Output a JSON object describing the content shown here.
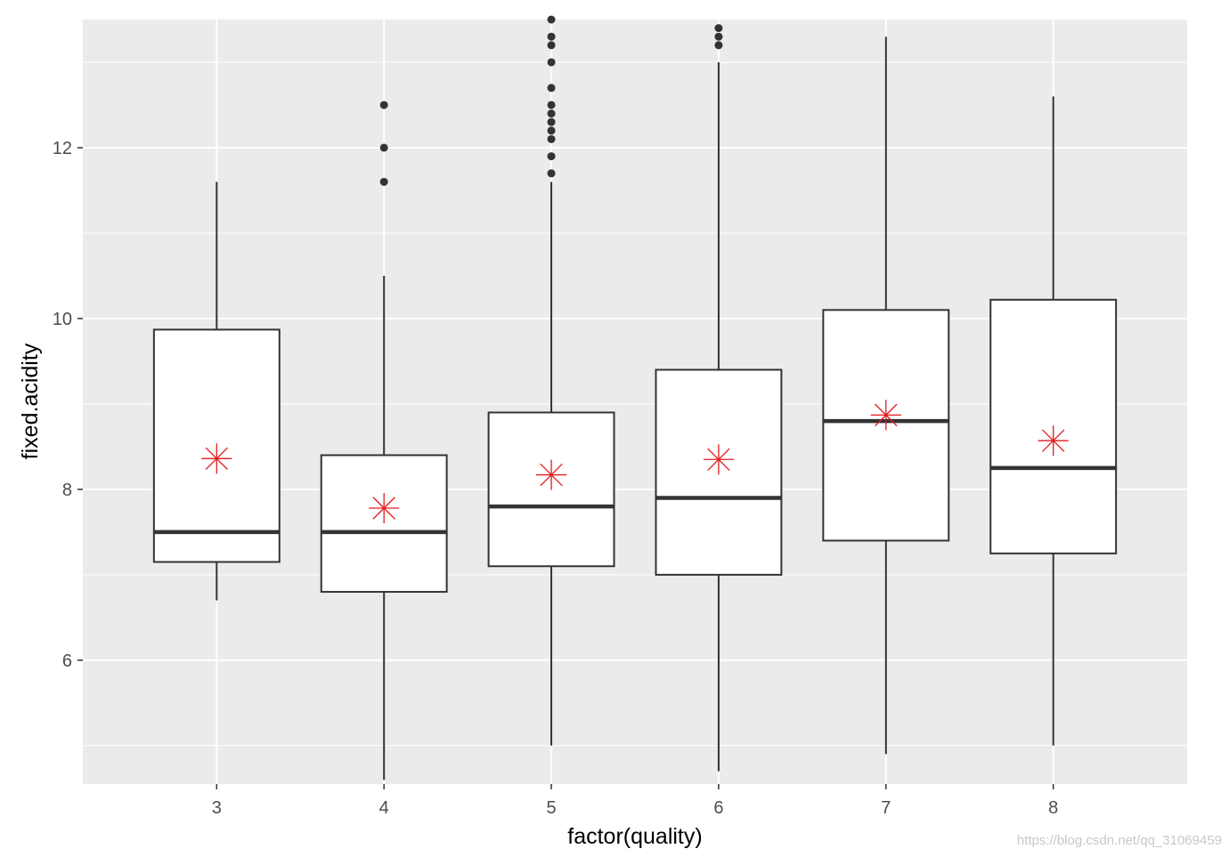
{
  "chart_data": {
    "type": "boxplot",
    "xlabel": "factor(quality)",
    "ylabel": "fixed.acidity",
    "categories": [
      "3",
      "4",
      "5",
      "6",
      "7",
      "8"
    ],
    "ylim": [
      4.55,
      13.5
    ],
    "y_ticks": [
      6,
      8,
      10,
      12
    ],
    "grid": true,
    "colors": {
      "panel": "#ebebeb",
      "grid": "#ffffff",
      "box_fill": "#ffffff",
      "box_stroke": "#333333",
      "mean_marker": "#e31a1c"
    },
    "boxes": [
      {
        "category": "3",
        "whisker_low": 6.7,
        "q1": 7.15,
        "median": 7.5,
        "q3": 9.87,
        "whisker_high": 11.6,
        "mean": 8.36,
        "outliers": []
      },
      {
        "category": "4",
        "whisker_low": 4.6,
        "q1": 6.8,
        "median": 7.5,
        "q3": 8.4,
        "whisker_high": 10.5,
        "mean": 7.78,
        "outliers": [
          11.6,
          12.0,
          12.5
        ]
      },
      {
        "category": "5",
        "whisker_low": 5.0,
        "q1": 7.1,
        "median": 7.8,
        "q3": 8.9,
        "whisker_high": 11.6,
        "mean": 8.17,
        "outliers": [
          11.7,
          11.9,
          12.1,
          12.2,
          12.3,
          12.4,
          12.5,
          12.7,
          13.0,
          13.2,
          13.3,
          13.5
        ]
      },
      {
        "category": "6",
        "whisker_low": 4.7,
        "q1": 7.0,
        "median": 7.9,
        "q3": 9.4,
        "whisker_high": 13.0,
        "mean": 8.35,
        "outliers": [
          13.2,
          13.3,
          13.4
        ]
      },
      {
        "category": "7",
        "whisker_low": 4.9,
        "q1": 7.4,
        "median": 8.8,
        "q3": 10.1,
        "whisker_high": 13.3,
        "mean": 8.87,
        "outliers": []
      },
      {
        "category": "8",
        "whisker_low": 5.0,
        "q1": 7.25,
        "median": 8.25,
        "q3": 10.22,
        "whisker_high": 12.6,
        "mean": 8.57,
        "outliers": []
      }
    ]
  },
  "watermark": "https://blog.csdn.net/qq_31069459"
}
